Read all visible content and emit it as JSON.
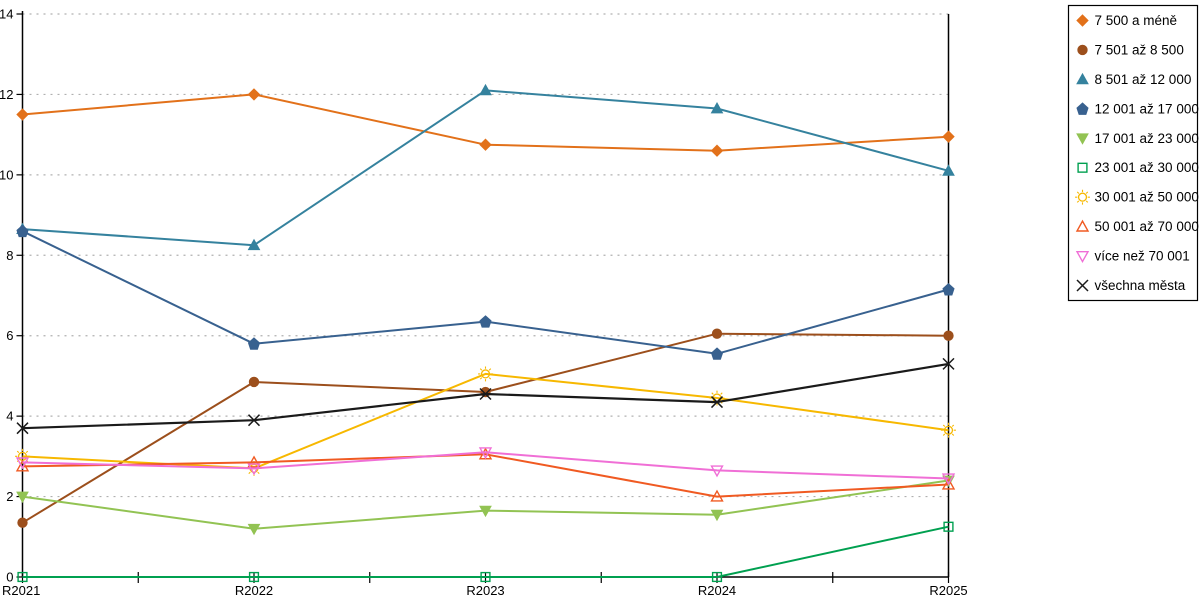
{
  "chart_data": {
    "type": "line",
    "categories": [
      "R2021",
      "R2022",
      "R2023",
      "R2024",
      "R2025"
    ],
    "series": [
      {
        "name": "7 500 a méně",
        "color": "#E2711A",
        "marker": "diamond",
        "fill": "solid",
        "values": [
          11.5,
          12.0,
          10.75,
          10.6,
          10.95
        ]
      },
      {
        "name": "7 501 až 8 500",
        "color": "#9C4F1C",
        "marker": "circle",
        "fill": "solid",
        "values": [
          1.35,
          4.85,
          4.6,
          6.05,
          6.0
        ]
      },
      {
        "name": "8 501 až 12 000",
        "color": "#35829E",
        "marker": "triangle-up",
        "fill": "solid",
        "values": [
          8.65,
          8.25,
          12.1,
          11.65,
          10.1
        ]
      },
      {
        "name": "12 001 až 17 000",
        "color": "#38618F",
        "marker": "pentagon",
        "fill": "solid",
        "values": [
          8.6,
          5.8,
          6.35,
          5.55,
          7.15
        ]
      },
      {
        "name": "17 001 až 23 000",
        "color": "#92C353",
        "marker": "triangle-down",
        "fill": "solid",
        "values": [
          2.0,
          1.2,
          1.65,
          1.55,
          2.4
        ]
      },
      {
        "name": "23 001 až 30 000",
        "color": "#00A050",
        "marker": "square",
        "fill": "open",
        "values": [
          0,
          0,
          0,
          0,
          1.25
        ]
      },
      {
        "name": "30 001 až 50 000",
        "color": "#F7B800",
        "marker": "sun",
        "fill": "open",
        "values": [
          3.0,
          2.7,
          5.05,
          4.45,
          3.65
        ]
      },
      {
        "name": "50 001 až 70 000",
        "color": "#F05A22",
        "marker": "triangle-up",
        "fill": "open",
        "values": [
          2.75,
          2.85,
          3.05,
          2.0,
          2.3
        ]
      },
      {
        "name": "více než 70 001",
        "color": "#F06FD6",
        "marker": "triangle-down",
        "fill": "open",
        "values": [
          2.85,
          2.7,
          3.1,
          2.65,
          2.45
        ]
      },
      {
        "name": "všechna města",
        "color": "#1A1A1A",
        "marker": "x",
        "fill": "open",
        "values": [
          3.7,
          3.9,
          4.55,
          4.35,
          5.3
        ]
      }
    ],
    "title": "",
    "xlabel": "",
    "ylabel": "",
    "ylim": [
      0,
      14
    ],
    "yticks": [
      "0",
      "2",
      "4",
      "6",
      "8",
      "10",
      "12",
      "14"
    ],
    "grid": "horizontal-dotted",
    "legend_position": "outside-top-right"
  },
  "style": {
    "grid_color": "#B0B0B0",
    "axis_color": "#000000",
    "background": "#FFFFFF",
    "legend_border": "#000000"
  }
}
